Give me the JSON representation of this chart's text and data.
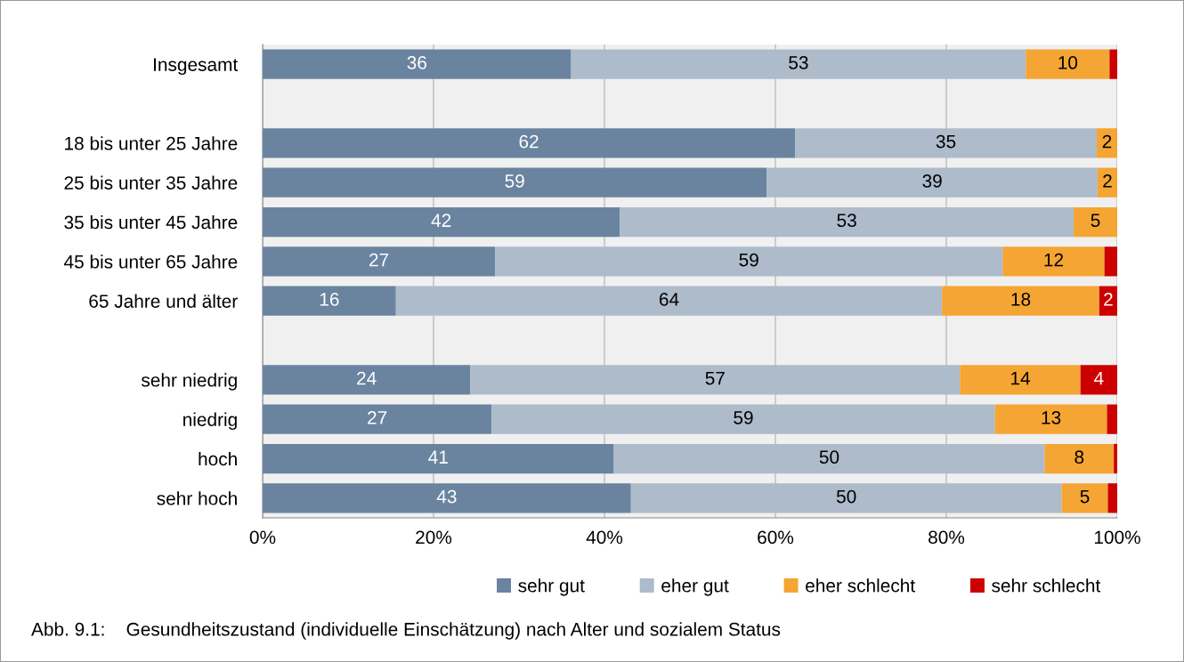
{
  "chart_data": {
    "type": "bar",
    "orientation": "horizontal",
    "stacked": true,
    "categories": [
      "Insgesamt",
      null,
      "18 bis unter 25 Jahre",
      "25 bis unter 35 Jahre",
      "35 bis unter 45 Jahre",
      "45 bis unter 65 Jahre",
      "65 Jahre und älter",
      null,
      "sehr niedrig",
      "niedrig",
      "hoch",
      "sehr hoch"
    ],
    "series": [
      {
        "name": "sehr gut",
        "color": "#6a84a0",
        "values": [
          36.1,
          null,
          62.3,
          59.0,
          41.8,
          27.2,
          15.6,
          null,
          24.3,
          26.8,
          41.1,
          43.1
        ],
        "value_labels": [
          "36",
          null,
          "62",
          "59",
          "42",
          "27",
          "16",
          null,
          "24",
          "27",
          "41",
          "43"
        ]
      },
      {
        "name": "eher gut",
        "color": "#adbbcb",
        "values": [
          53.2,
          null,
          35.3,
          38.7,
          53.1,
          59.4,
          63.9,
          null,
          57.3,
          58.9,
          50.4,
          50.4
        ],
        "value_labels": [
          "53",
          null,
          "35",
          "39",
          "53",
          "59",
          "64",
          null,
          "57",
          "59",
          "50",
          "50"
        ]
      },
      {
        "name": "eher schlecht",
        "color": "#f5a533",
        "values": [
          9.8,
          null,
          2.4,
          2.3,
          5.1,
          11.9,
          18.4,
          null,
          14.1,
          13.1,
          8.1,
          5.4
        ],
        "value_labels": [
          "10",
          null,
          "2",
          "2",
          "5",
          "12",
          "18",
          null,
          "14",
          "13",
          "8",
          "5"
        ]
      },
      {
        "name": "sehr schlecht",
        "color": "#cc0000",
        "values": [
          0.9,
          null,
          null,
          null,
          null,
          1.5,
          2.1,
          null,
          4.3,
          1.2,
          0.4,
          1.1
        ],
        "value_labels": [
          null,
          null,
          null,
          null,
          null,
          null,
          "2",
          null,
          "4",
          null,
          null,
          null
        ]
      }
    ],
    "xlim": [
      0,
      100
    ],
    "xticks": [
      {
        "value": 0,
        "label": "0%"
      },
      {
        "value": 20,
        "label": "20%"
      },
      {
        "value": 40,
        "label": "40%"
      },
      {
        "value": 60,
        "label": "60%"
      },
      {
        "value": 80,
        "label": "80%"
      },
      {
        "value": 100,
        "label": "100%"
      }
    ],
    "grid": "x",
    "legend": "bottom",
    "annotations": [
      "Abb. 9.1:    Gesundheitszustand (individuelle Einschätzung) nach Alter und sozialem Status"
    ]
  }
}
